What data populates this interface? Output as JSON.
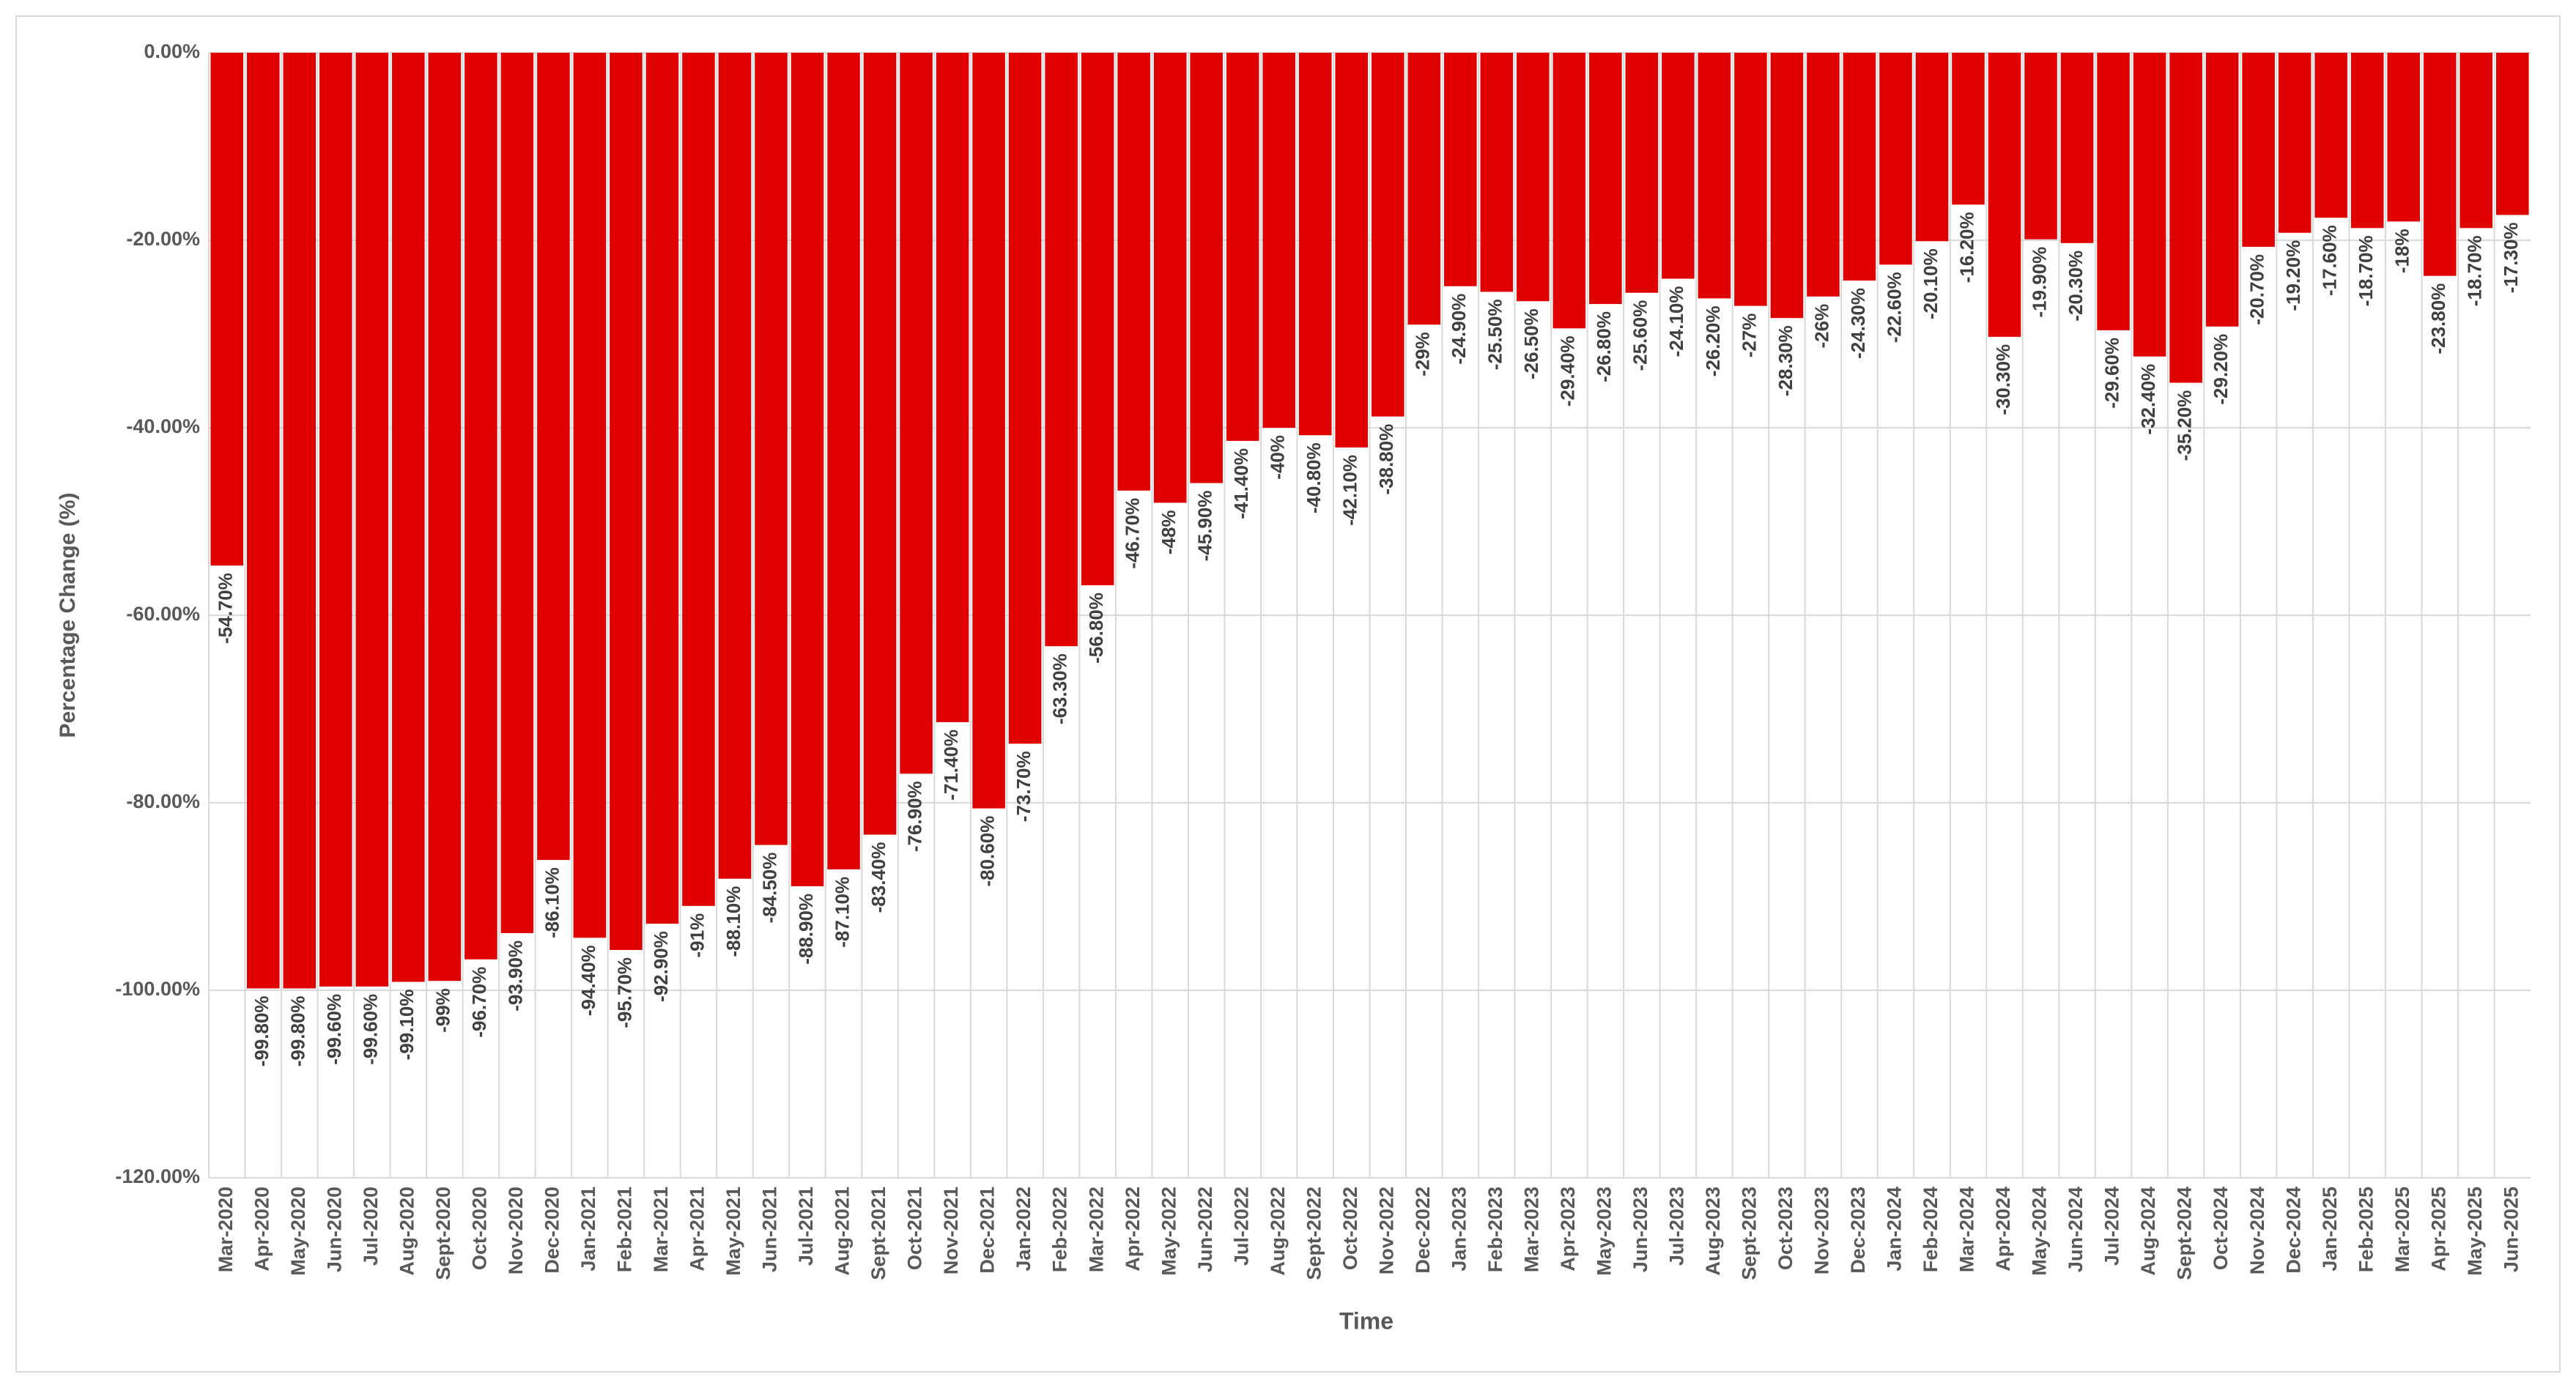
{
  "chart_data": {
    "type": "bar",
    "x_label": "Time",
    "y_label": "Percentage Change (%)",
    "color": "#e00000",
    "grid": true,
    "categories": [
      "Mar-2020",
      "Apr-2020",
      "May-2020",
      "Jun-2020",
      "Jul-2020",
      "Aug-2020",
      "Sept-2020",
      "Oct-2020",
      "Nov-2020",
      "Dec-2020",
      "Jan-2021",
      "Feb-2021",
      "Mar-2021",
      "Apr-2021",
      "May-2021",
      "Jun-2021",
      "Jul-2021",
      "Aug-2021",
      "Sept-2021",
      "Oct-2021",
      "Nov-2021",
      "Dec-2021",
      "Jan-2022",
      "Feb-2022",
      "Mar-2022",
      "Apr-2022",
      "May-2022",
      "Jun-2022",
      "Jul-2022",
      "Aug-2022",
      "Sept-2022",
      "Oct-2022",
      "Nov-2022",
      "Dec-2022",
      "Jan-2023",
      "Feb-2023",
      "Mar-2023",
      "Apr-2023",
      "May-2023",
      "Jun-2023",
      "Jul-2023",
      "Aug-2023",
      "Sept-2023",
      "Oct-2023",
      "Nov-2023",
      "Dec-2023",
      "Jan-2024",
      "Feb-2024",
      "Mar-2024",
      "Apr-2024",
      "May-2024",
      "Jun-2024",
      "Jul-2024",
      "Aug-2024",
      "Sept-2024",
      "Oct-2024",
      "Nov-2024",
      "Dec-2024",
      "Jan-2025",
      "Feb-2025",
      "Mar-2025",
      "Apr-2025",
      "May-2025",
      "Jun-2025"
    ],
    "values": [
      -54.7,
      -99.8,
      -99.8,
      -99.6,
      -99.6,
      -99.1,
      -99,
      -96.7,
      -93.9,
      -86.1,
      -94.4,
      -95.7,
      -92.9,
      -91,
      -88.1,
      -84.5,
      -88.9,
      -87.1,
      -83.4,
      -76.9,
      -71.4,
      -80.6,
      -73.7,
      -63.3,
      -56.8,
      -46.7,
      -48,
      -45.9,
      -41.4,
      -40,
      -40.8,
      -42.1,
      -38.8,
      -29,
      -24.9,
      -25.5,
      -26.5,
      -29.4,
      -26.8,
      -25.6,
      -24.1,
      -26.2,
      -27,
      -28.3,
      -26,
      -24.3,
      -22.6,
      -20.1,
      -16.2,
      -30.3,
      -19.9,
      -20.3,
      -29.6,
      -32.4,
      -35.2,
      -29.2,
      -20.7,
      -19.2,
      -17.6,
      -18.7,
      -18,
      -23.8,
      -18.7,
      -17.3
    ],
    "value_labels": [
      "-54.70%",
      "-99.80%",
      "-99.80%",
      "-99.60%",
      "-99.60%",
      "-99.10%",
      "-99%",
      "-96.70%",
      "-93.90%",
      "-86.10%",
      "-94.40%",
      "-95.70%",
      "-92.90%",
      "-91%",
      "-88.10%",
      "-84.50%",
      "-88.90%",
      "-87.10%",
      "-83.40%",
      "-76.90%",
      "-71.40%",
      "-80.60%",
      "-73.70%",
      "-63.30%",
      "-56.80%",
      "-46.70%",
      "-48%",
      "-45.90%",
      "-41.40%",
      "-40%",
      "-40.80%",
      "-42.10%",
      "-38.80%",
      "-29%",
      "-24.90%",
      "-25.50%",
      "-26.50%",
      "-29.40%",
      "-26.80%",
      "-25.60%",
      "-24.10%",
      "-26.20%",
      "-27%",
      "-28.30%",
      "-26%",
      "-24.30%",
      "-22.60%",
      "-20.10%",
      "-16.20%",
      "-30.30%",
      "-19.90%",
      "-20.30%",
      "-29.60%",
      "-32.40%",
      "-35.20%",
      "-29.20%",
      "-20.70%",
      "-19.20%",
      "-17.60%",
      "-18.70%",
      "-18%",
      "-23.80%",
      "-18.70%",
      "-17.30%"
    ],
    "ylim": [
      -120,
      0
    ],
    "yticks": [
      {
        "value": 0,
        "label": "0.00%"
      },
      {
        "value": -20,
        "label": "-20.00%"
      },
      {
        "value": -40,
        "label": "-40.00%"
      },
      {
        "value": -60,
        "label": "-60.00%"
      },
      {
        "value": -80,
        "label": "-80.00%"
      },
      {
        "value": -100,
        "label": "-100.00%"
      },
      {
        "value": -120,
        "label": "-120.00%"
      }
    ]
  }
}
